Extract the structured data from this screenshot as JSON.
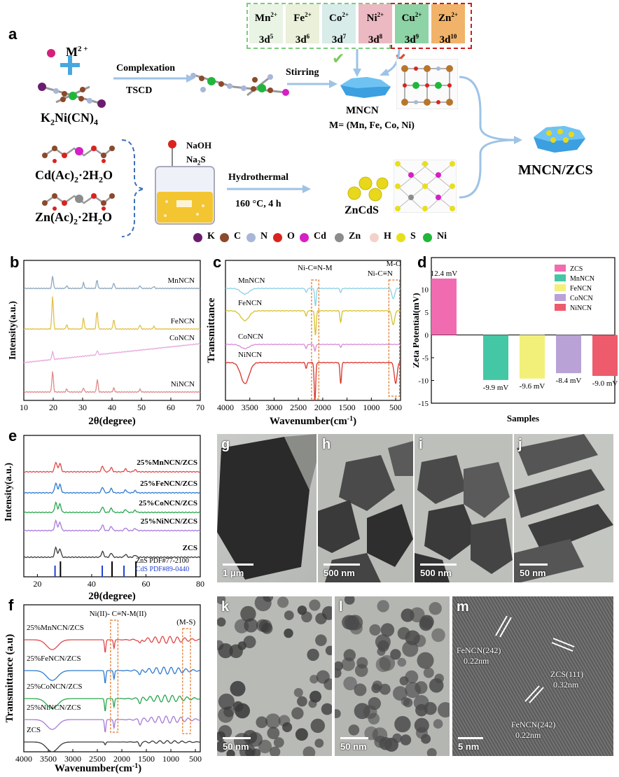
{
  "panel_labels": [
    "a",
    "b",
    "c",
    "d",
    "e",
    "f",
    "g",
    "h",
    "i",
    "j",
    "k",
    "l",
    "m"
  ],
  "a": {
    "ions": [
      {
        "ion": "Mn",
        "charge": "2+",
        "config": "3d",
        "exp": "5",
        "color": "#e9f4e4"
      },
      {
        "ion": "Fe",
        "charge": "2+",
        "config": "3d",
        "exp": "6",
        "color": "#eaf0d9"
      },
      {
        "ion": "Co",
        "charge": "2+",
        "config": "3d",
        "exp": "7",
        "color": "#d8ece9"
      },
      {
        "ion": "Ni",
        "charge": "2+",
        "config": "3d",
        "exp": "8",
        "color": "#ecb9c2"
      },
      {
        "ion": "Cu",
        "charge": "2+",
        "config": "3d",
        "exp": "9",
        "color": "#8dd3a5"
      },
      {
        "ion": "Zn",
        "charge": "2+",
        "config": "3d",
        "exp": "10",
        "color": "#f1b36a"
      }
    ],
    "m2": "M",
    "m2_charge": "2 +",
    "k2": "K",
    "k2_sub1": "2",
    "k2_mid": "Ni(CN)",
    "k2_sub2": "4",
    "complexation": "Complexation",
    "tscd": "TSCD",
    "stirring": "Stirring",
    "mncn": "MNCN",
    "mncn_formula": "M= (Mn, Fe, Co, Ni)",
    "cd_ac": "Cd(Ac)",
    "cd_sub": "2",
    "cd_tail": "·2H",
    "cd_sub2": "2",
    "cd_end": "O",
    "zn_ac": "Zn(Ac)",
    "zn_sub": "2",
    "zn_tail": "·2H",
    "zn_sub2": "2",
    "zn_end": "O",
    "naoh": "NaOH",
    "na2s": "Na",
    "na2s_sub": "2",
    "na2s_end": "S",
    "hydrothermal": "Hydrothermal",
    "conditions": "160 °C, 4 h",
    "zncds": "ZnCdS",
    "product": "MNCN/ZCS",
    "legend": [
      {
        "sym": "K",
        "color": "#6a1d6f"
      },
      {
        "sym": "C",
        "color": "#8b4a2b"
      },
      {
        "sym": "N",
        "color": "#a9b6d8"
      },
      {
        "sym": "O",
        "color": "#d8231f"
      },
      {
        "sym": "Cd",
        "color": "#d61fc7"
      },
      {
        "sym": "Zn",
        "color": "#8c8c8c"
      },
      {
        "sym": "H",
        "color": "#f2d2c8"
      },
      {
        "sym": "S",
        "color": "#e8df1c"
      },
      {
        "sym": "Ni",
        "color": "#20b63a"
      }
    ]
  },
  "b": {
    "chart_data": {
      "type": "line",
      "title": "",
      "xlabel": "2θ(degree)",
      "ylabel": "Intensity(a.u.)",
      "xlim": [
        10,
        70
      ],
      "xticks": [
        10,
        20,
        30,
        40,
        50,
        60,
        70
      ],
      "series": [
        {
          "name": "MnNCN",
          "color": "#8fa8bf",
          "peaks": [
            19.8,
            24.6,
            30.3,
            34.9,
            40.6,
            49.5,
            54.2
          ]
        },
        {
          "name": "FeNCN",
          "color": "#e0c14a",
          "peaks": [
            19.8,
            24.6,
            30.3,
            34.9,
            40.6,
            49.5,
            54.2
          ]
        },
        {
          "name": "CoNCN",
          "color": "#e7a8df",
          "peaks": [
            19.8,
            35.0
          ]
        },
        {
          "name": "NiNCN",
          "color": "#df8a8a",
          "peaks": [
            19.8,
            24.6,
            30.3,
            35.0,
            40.6,
            49.5
          ]
        }
      ]
    }
  },
  "c": {
    "chart_data": {
      "type": "line",
      "title": "",
      "xlabel": "Wavenumber(cm",
      "xlabel_sup": "-1",
      "xlabel_end": ")",
      "ylabel": "Transmittance",
      "xlim": [
        4000,
        400
      ],
      "xticks": [
        4000,
        3500,
        3000,
        2500,
        2000,
        1500,
        1000,
        500
      ],
      "annotations": [
        "Ni-C≡N-M",
        "M-O",
        "Ni-C≡N"
      ],
      "series": [
        {
          "name": "MnNCN",
          "color": "#8ad0e6",
          "dips": [
            [
              3600,
              8
            ],
            [
              2340,
              6
            ],
            [
              2150,
              25
            ],
            [
              1630,
              6
            ],
            [
              550,
              15
            ]
          ]
        },
        {
          "name": "FeNCN",
          "color": "#d5c22a",
          "dips": [
            [
              3600,
              14
            ],
            [
              2340,
              8
            ],
            [
              2150,
              35
            ],
            [
              1630,
              16
            ],
            [
              550,
              20
            ]
          ]
        },
        {
          "name": "CoNCN",
          "color": "#d78ad7",
          "dips": [
            [
              3600,
              6
            ],
            [
              2340,
              6
            ],
            [
              2160,
              10
            ],
            [
              1630,
              4
            ]
          ]
        },
        {
          "name": "NiNCN",
          "color": "#d9322b",
          "dips": [
            [
              3600,
              30
            ],
            [
              2340,
              8
            ],
            [
              2160,
              55
            ],
            [
              1630,
              30
            ],
            [
              500,
              30
            ]
          ]
        }
      ]
    }
  },
  "d": {
    "chart_data": {
      "type": "bar",
      "title": "",
      "xlabel": "Samples",
      "ylabel": "Zeta Potential(mV)",
      "ylim": [
        -15,
        15
      ],
      "yticks": [
        -15,
        -10,
        -5,
        0,
        5,
        10
      ],
      "categories": [
        "ZCS",
        "MnNCN",
        "FeNCN",
        "CoNCN",
        "NiNCN"
      ],
      "values": [
        12.4,
        -9.9,
        -9.6,
        -8.4,
        -9.0
      ],
      "labels": [
        "12.4 mV",
        "-9.9 mV",
        "-9.6 mV",
        "-8.4 mV",
        "-9.0 mV"
      ],
      "colors": [
        "#f06bb0",
        "#43c7a4",
        "#f3f07a",
        "#b8a2d6",
        "#ee5b6d"
      ],
      "legend_position": "top-right"
    }
  },
  "e": {
    "chart_data": {
      "type": "line",
      "title": "",
      "xlabel": "2θ(degree)",
      "ylabel": "Intensity(a.u.)",
      "xlim": [
        15,
        80
      ],
      "xticks": [
        20,
        40,
        60,
        80
      ],
      "series": [
        {
          "name": "25%MnNCN/ZCS",
          "color": "#e0484a"
        },
        {
          "name": "25%FeNCN/ZCS",
          "color": "#2f7bd0"
        },
        {
          "name": "25%CoNCN/ZCS",
          "color": "#2aa64f"
        },
        {
          "name": "25%NiNCN/ZCS",
          "color": "#a77ad8"
        },
        {
          "name": "ZCS",
          "color": "#3a3a3a"
        }
      ],
      "peaks": [
        26.8,
        28.3,
        44.0,
        47.2,
        52.5,
        56.0
      ],
      "references": [
        {
          "name": "ZnS PDF#77-2100",
          "color": "#000000",
          "lines": [
            28.5,
            47.5,
            56.3
          ]
        },
        {
          "name": "CdS PDF#89-0440",
          "color": "#1f3ed6",
          "lines": [
            26.5,
            43.9,
            51.9
          ]
        }
      ]
    }
  },
  "f": {
    "chart_data": {
      "type": "line",
      "title": "",
      "xlabel": "Wavenumber(cm",
      "xlabel_sup": "-1",
      "xlabel_end": ")",
      "ylabel": "Transmittance (a.u)",
      "xlim": [
        4000,
        400
      ],
      "xticks": [
        4000,
        3500,
        3000,
        2500,
        2000,
        1500,
        1000,
        500
      ],
      "annotations": [
        "Ni(II)- C≡N-M(II)",
        "(M-S)"
      ],
      "series": [
        {
          "name": "25%MnNCN/ZCS",
          "color": "#e0484a"
        },
        {
          "name": "25%FeNCN/ZCS",
          "color": "#2f7bd0"
        },
        {
          "name": "25%CoNCN/ZCS",
          "color": "#2aa64f"
        },
        {
          "name": "25%NiNCN/ZCS",
          "color": "#a77ad8"
        },
        {
          "name": "ZCS",
          "color": "#3a3a3a"
        }
      ]
    }
  },
  "tem": [
    {
      "label": "g",
      "scale": "1 μm"
    },
    {
      "label": "h",
      "scale": "500 nm"
    },
    {
      "label": "i",
      "scale": "500 nm"
    },
    {
      "label": "j",
      "scale": "50 nm"
    },
    {
      "label": "k",
      "scale": "50 nm"
    },
    {
      "label": "l",
      "scale": "50 nm"
    },
    {
      "label": "m",
      "scale": "5 nm"
    }
  ],
  "m_annot": {
    "a1": "FeNCN(242)",
    "a1v": "0.22nm",
    "a2": "ZCS(111)",
    "a2v": "0.32nm",
    "a3": "FeNCN(242)",
    "a3v": "0.22nm"
  }
}
